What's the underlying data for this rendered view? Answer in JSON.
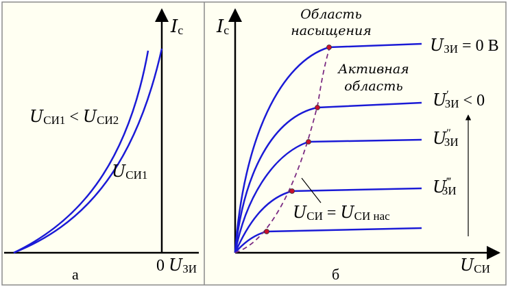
{
  "colors": {
    "background": "#fffff2",
    "border": "#8a8a8a",
    "axis": "#000000",
    "curve": "#1a1ad6",
    "locus": "#7b2b82",
    "point": "#c8102e",
    "text": "#000000"
  },
  "panel_a": {
    "axis_y_label": {
      "main": "I",
      "sub": "с"
    },
    "axis_x_label": {
      "prefix": "0",
      "main": "U",
      "sub": "ЗИ"
    },
    "caption": "а",
    "labels": {
      "relation": {
        "u1": "U",
        "sub1": "СИ1",
        "op": " < ",
        "u2": "U",
        "sub2": "СИ2"
      },
      "curve_name": {
        "u": "U",
        "sub": "СИ1"
      }
    }
  },
  "panel_b": {
    "axis_y_label": {
      "main": "I",
      "sub": "с"
    },
    "axis_x_label": {
      "main": "U",
      "sub": "СИ"
    },
    "caption": "б",
    "region_saturation": [
      "Область",
      "насыщения"
    ],
    "region_active": [
      "Активная",
      "область"
    ],
    "boundary_label": {
      "u1": "U",
      "sub1": "СИ",
      "eq": " = ",
      "u2": "U",
      "sub2": "СИ нас"
    },
    "curve_labels": [
      {
        "u": "U",
        "prime": "",
        "sub": "ЗИ",
        "suffix": " = 0 В"
      },
      {
        "u": "U",
        "prime": "′",
        "sub": "ЗИ",
        "suffix": " < 0"
      },
      {
        "u": "U",
        "prime": "″",
        "sub": "ЗИ",
        "suffix": ""
      },
      {
        "u": "U",
        "prime": "‴",
        "sub": "ЗИ",
        "suffix": ""
      }
    ]
  }
}
